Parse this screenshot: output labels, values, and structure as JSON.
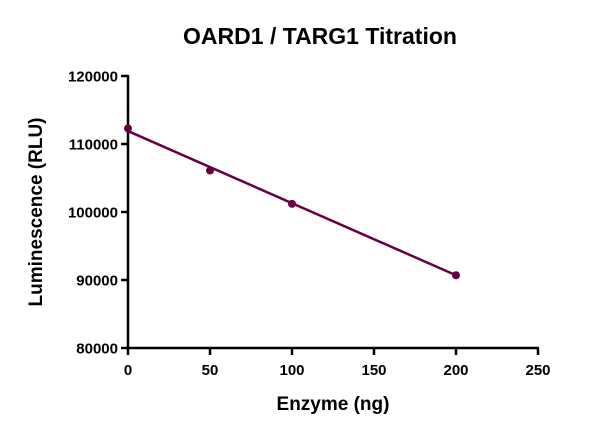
{
  "chart_data": {
    "type": "scatter",
    "title": "OARD1 / TARG1 Titration",
    "xlabel": "Enzyme (ng)",
    "ylabel": "Luminescence (RLU)",
    "xlim": [
      0,
      250
    ],
    "ylim": [
      80000,
      120000
    ],
    "xticks": [
      "0",
      "50",
      "100",
      "150",
      "200",
      "250"
    ],
    "yticks": [
      "80000",
      "90000",
      "100000",
      "110000",
      "120000"
    ],
    "grid": false,
    "color": "#660044",
    "series": [
      {
        "x": [
          0,
          50,
          100,
          200
        ],
        "y": [
          112300,
          106100,
          101200,
          90700
        ]
      }
    ],
    "fit_line": {
      "x": [
        0,
        200
      ],
      "y": [
        111900,
        90700
      ]
    }
  }
}
